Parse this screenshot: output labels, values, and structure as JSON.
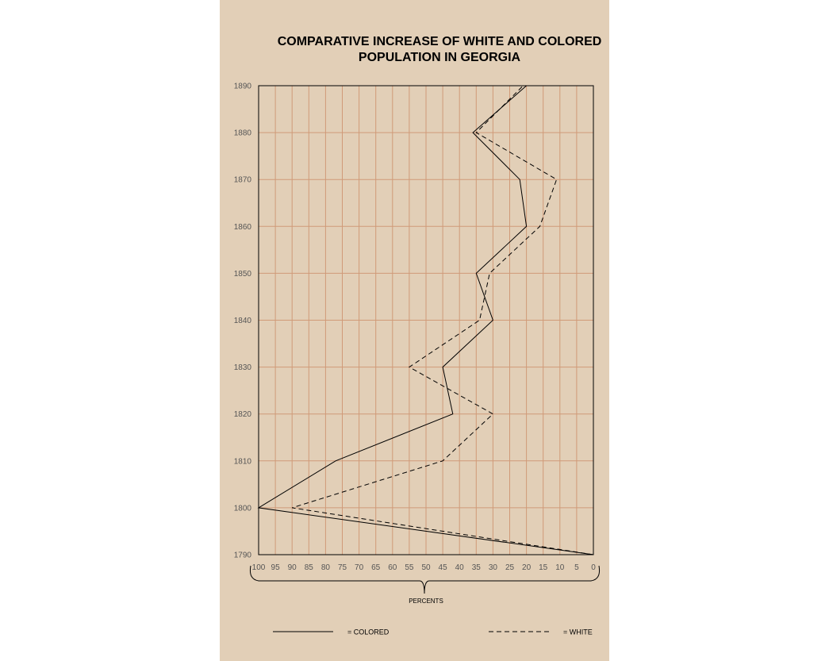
{
  "chart_data": {
    "type": "line",
    "title_lines": [
      "COMPARATIVE INCREASE OF WHITE AND COLORED",
      "POPULATION IN GEORGIA"
    ],
    "xlabel": "PERCENTS",
    "ylabel": "",
    "x_ticks": [
      "100",
      "95",
      "90",
      "85",
      "80",
      "75",
      "70",
      "65",
      "60",
      "55",
      "50",
      "45",
      "40",
      "35",
      "30",
      "25",
      "20",
      "15",
      "10",
      "5",
      "0"
    ],
    "y_ticks": [
      "1890",
      "1880",
      "1870",
      "1860",
      "1850",
      "1840",
      "1830",
      "1820",
      "1810",
      "1800",
      "1790"
    ],
    "xlim": [
      100,
      0
    ],
    "ylim": [
      1790,
      1890
    ],
    "grid": true,
    "legend_placement": "bottom",
    "series": [
      {
        "name": "COLORED",
        "legend_label": "= COLORED",
        "style": "solid",
        "points": [
          {
            "year": 1790,
            "percent": 0
          },
          {
            "year": 1800,
            "percent": 100
          },
          {
            "year": 1810,
            "percent": 77
          },
          {
            "year": 1820,
            "percent": 42
          },
          {
            "year": 1830,
            "percent": 45
          },
          {
            "year": 1840,
            "percent": 30
          },
          {
            "year": 1850,
            "percent": 35
          },
          {
            "year": 1860,
            "percent": 20
          },
          {
            "year": 1870,
            "percent": 22
          },
          {
            "year": 1880,
            "percent": 36
          },
          {
            "year": 1890,
            "percent": 20
          }
        ]
      },
      {
        "name": "WHITE",
        "legend_label": "= WHITE",
        "style": "dashed",
        "points": [
          {
            "year": 1790,
            "percent": 0
          },
          {
            "year": 1800,
            "percent": 90
          },
          {
            "year": 1810,
            "percent": 45
          },
          {
            "year": 1820,
            "percent": 30
          },
          {
            "year": 1830,
            "percent": 55
          },
          {
            "year": 1840,
            "percent": 34
          },
          {
            "year": 1850,
            "percent": 31
          },
          {
            "year": 1860,
            "percent": 16
          },
          {
            "year": 1870,
            "percent": 11
          },
          {
            "year": 1880,
            "percent": 35
          },
          {
            "year": 1890,
            "percent": 21
          }
        ]
      }
    ],
    "colors": {
      "background": "#e2cfb7",
      "grid": "#d09a78",
      "line": "#000000",
      "tick_text": "#555555"
    }
  }
}
